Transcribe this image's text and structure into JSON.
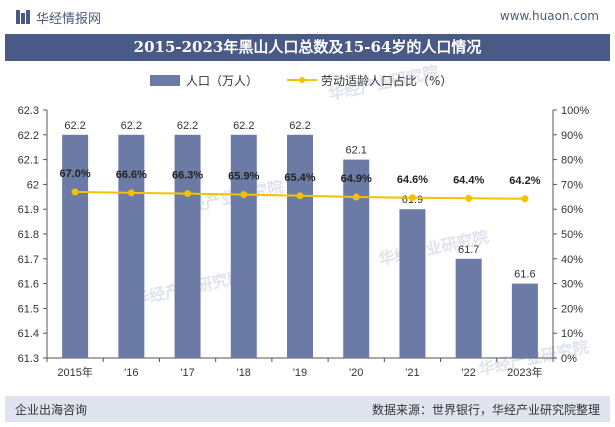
{
  "header": {
    "brand": "华经情报网",
    "site": "www.huaon.com"
  },
  "footer": {
    "left": "企业出海咨询",
    "right": "数据来源：世界银行，华经产业研究院整理"
  },
  "watermark": "华经产业研究院",
  "colors": {
    "bar": "#6b7ba6",
    "line": "#f2c200",
    "title_bg": "#4a5a86"
  },
  "chart_data": {
    "type": "bar",
    "title": "2015-2023年黑山人口总数及15-64岁的人口情况",
    "categories": [
      "2015年",
      "'16",
      "'17",
      "'18",
      "'19",
      "'20",
      "'21",
      "'22",
      "2023年"
    ],
    "series": [
      {
        "name": "人口（万人）",
        "type": "bar",
        "axis": "left",
        "values": [
          62.2,
          62.2,
          62.2,
          62.2,
          62.2,
          62.1,
          61.9,
          61.7,
          61.6
        ]
      },
      {
        "name": "劳动适龄人口占比（%）",
        "type": "line",
        "axis": "right",
        "values": [
          67.0,
          66.6,
          66.3,
          65.9,
          65.4,
          64.9,
          64.6,
          64.4,
          64.2
        ],
        "labels": [
          "67.0%",
          "66.6%",
          "66.3%",
          "65.9%",
          "65.4%",
          "64.9%",
          "64.6%",
          "64.4%",
          "64.2%"
        ]
      }
    ],
    "y_left": {
      "min": 61.3,
      "max": 62.3,
      "ticks": [
        "61.3",
        "61.4",
        "61.5",
        "61.6",
        "61.7",
        "61.8",
        "61.9",
        "62",
        "62.1",
        "62.2",
        "62.3"
      ]
    },
    "y_right": {
      "min": 0,
      "max": 100,
      "ticks": [
        "0%",
        "10%",
        "20%",
        "30%",
        "40%",
        "50%",
        "60%",
        "70%",
        "80%",
        "90%",
        "100%"
      ]
    },
    "legend_position": "top-center",
    "grid": false
  }
}
